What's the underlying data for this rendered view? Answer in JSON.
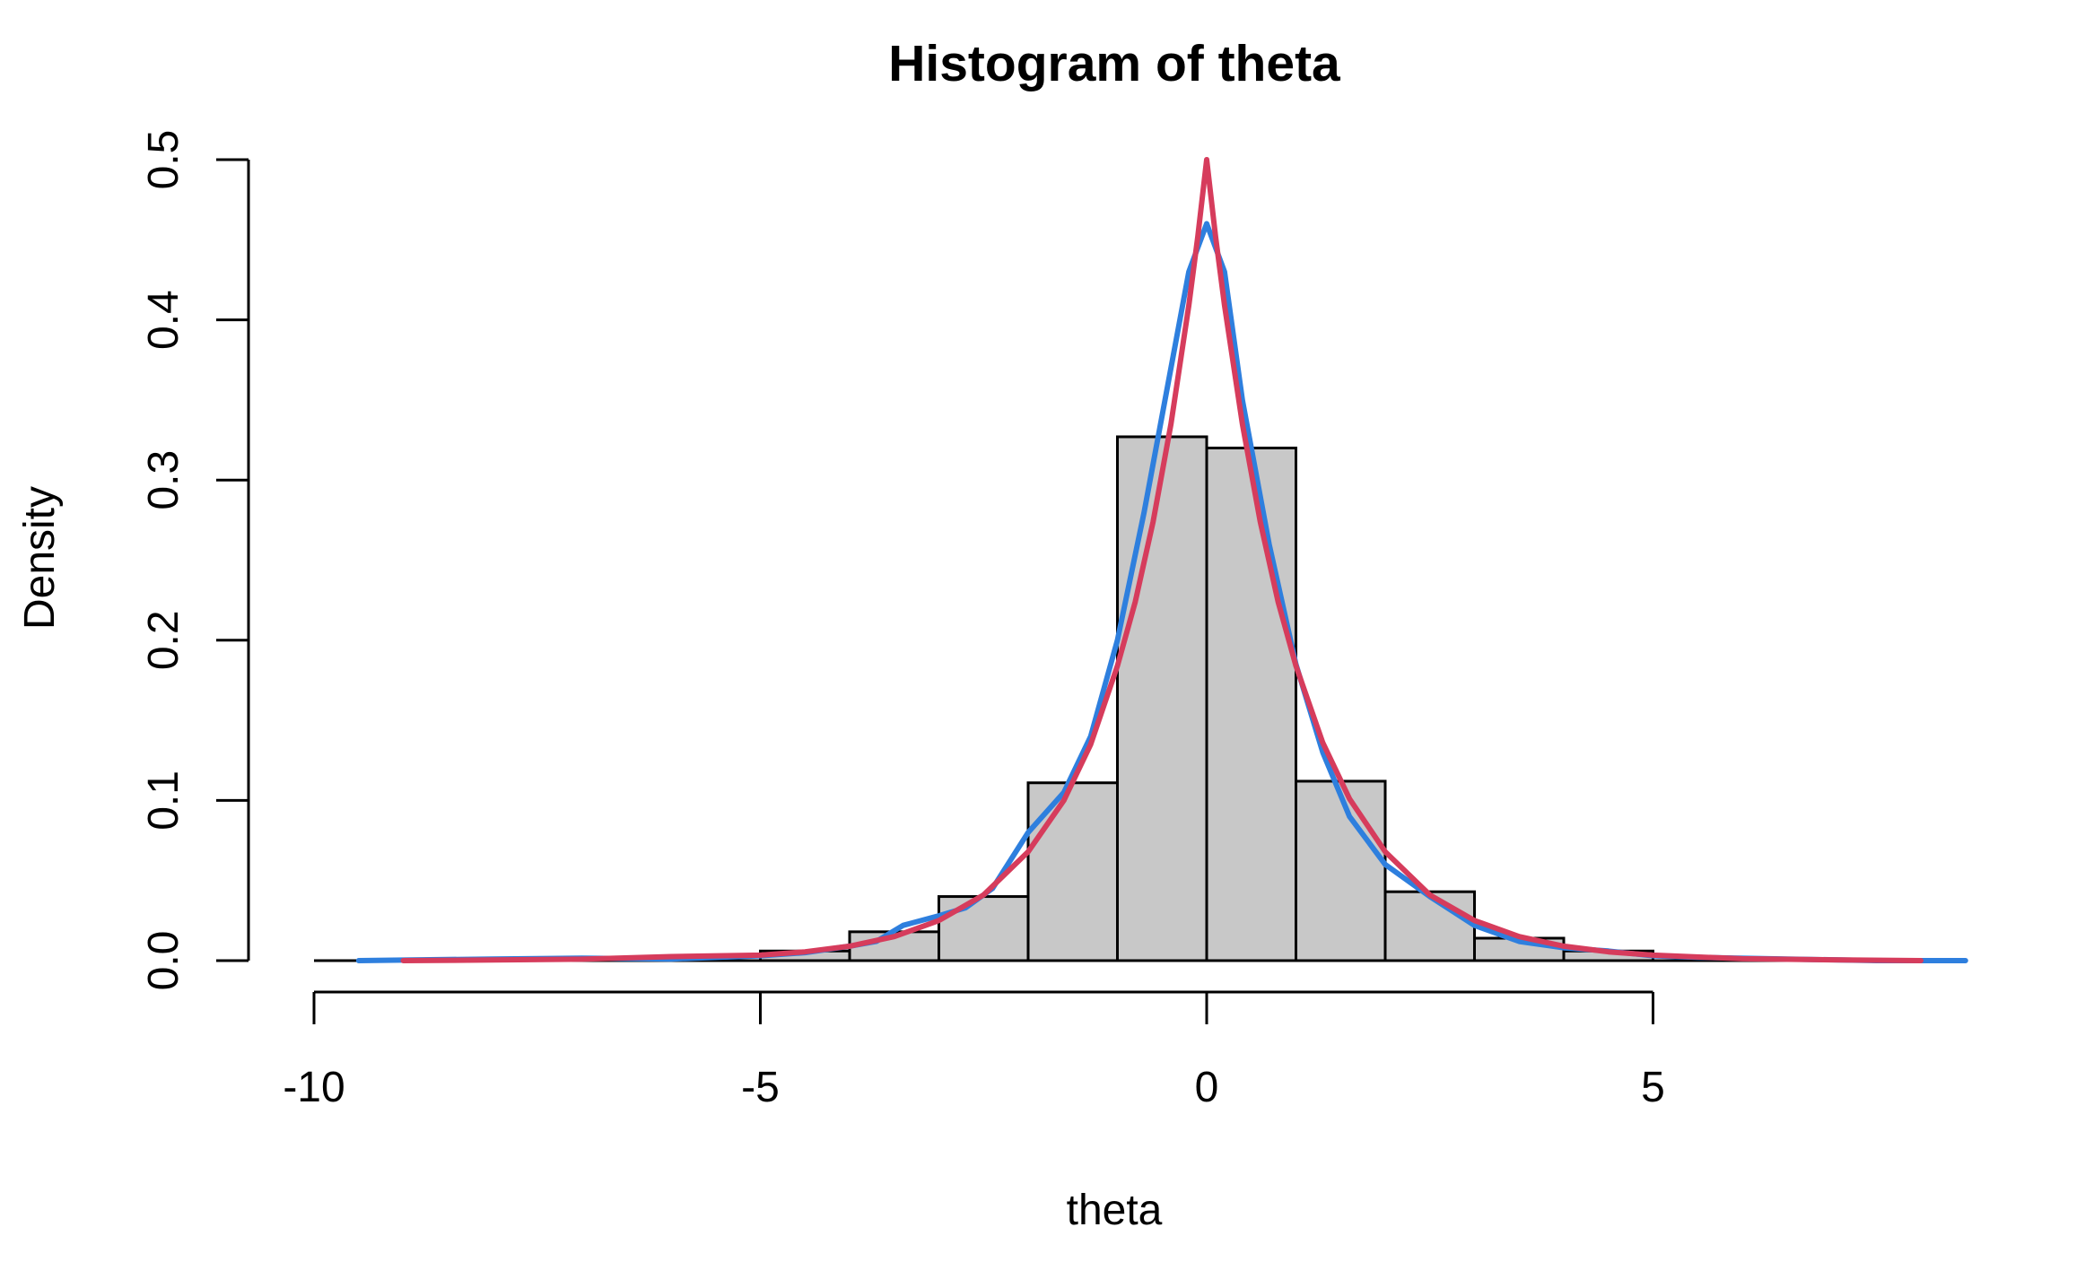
{
  "chart_data": {
    "type": "bar",
    "title": "Histogram of theta",
    "xlabel": "theta",
    "ylabel": "Density",
    "xlim": [
      -10,
      8.5
    ],
    "ylim": [
      0,
      0.5
    ],
    "x_ticks": [
      -10,
      -5,
      0,
      5
    ],
    "y_ticks": [
      0.0,
      0.1,
      0.2,
      0.3,
      0.4,
      0.5
    ],
    "y_tick_labels": [
      "0.0",
      "0.1",
      "0.2",
      "0.3",
      "0.4",
      "0.5"
    ],
    "bins": [
      {
        "from": -10,
        "to": -9,
        "density": 0.0
      },
      {
        "from": -9,
        "to": -8,
        "density": 0.0
      },
      {
        "from": -8,
        "to": -7,
        "density": 0.0
      },
      {
        "from": -7,
        "to": -6,
        "density": 0.0
      },
      {
        "from": -6,
        "to": -5,
        "density": 0.0
      },
      {
        "from": -5,
        "to": -4,
        "density": 0.006
      },
      {
        "from": -4,
        "to": -3,
        "density": 0.018
      },
      {
        "from": -3,
        "to": -2,
        "density": 0.04
      },
      {
        "from": -2,
        "to": -1,
        "density": 0.111
      },
      {
        "from": -1,
        "to": 0,
        "density": 0.327
      },
      {
        "from": 0,
        "to": 1,
        "density": 0.32
      },
      {
        "from": 1,
        "to": 2,
        "density": 0.112
      },
      {
        "from": 2,
        "to": 3,
        "density": 0.043
      },
      {
        "from": 3,
        "to": 4,
        "density": 0.014
      },
      {
        "from": 4,
        "to": 5,
        "density": 0.006
      },
      {
        "from": 5,
        "to": 6,
        "density": 0.0
      },
      {
        "from": 6,
        "to": 7,
        "density": 0.0
      },
      {
        "from": 7,
        "to": 8,
        "density": 0.0
      }
    ],
    "bar_color": "#c8c8c8",
    "series": [
      {
        "color": "#2e7fde",
        "x": [
          -9.5,
          -8,
          -7,
          -6,
          -5,
          -4.5,
          -4,
          -3.7,
          -3.4,
          -3.0,
          -2.7,
          -2.4,
          -2.0,
          -1.6,
          -1.3,
          -1.0,
          -0.7,
          -0.4,
          -0.2,
          0.0,
          0.2,
          0.4,
          0.7,
          1.0,
          1.3,
          1.6,
          2.0,
          2.5,
          3.0,
          3.5,
          4.0,
          4.5,
          5.0,
          5.5,
          6.5,
          7.5,
          8.5
        ],
        "y": [
          0.0,
          0.001,
          0.0015,
          0.001,
          0.003,
          0.005,
          0.009,
          0.012,
          0.022,
          0.028,
          0.033,
          0.045,
          0.08,
          0.105,
          0.14,
          0.2,
          0.28,
          0.37,
          0.43,
          0.46,
          0.43,
          0.35,
          0.26,
          0.185,
          0.13,
          0.09,
          0.06,
          0.04,
          0.022,
          0.012,
          0.008,
          0.006,
          0.003,
          0.002,
          0.001,
          0.0,
          0.0
        ]
      },
      {
        "color": "#d63c5c",
        "x": [
          -9.0,
          -8.0,
          -7.0,
          -6.0,
          -5.0,
          -4.5,
          -4.0,
          -3.5,
          -3.0,
          -2.5,
          -2.0,
          -1.6,
          -1.3,
          -1.0,
          -0.8,
          -0.6,
          -0.4,
          -0.2,
          -0.1,
          0.0,
          0.1,
          0.2,
          0.4,
          0.6,
          0.8,
          1.0,
          1.3,
          1.6,
          2.0,
          2.5,
          3.0,
          3.5,
          4.0,
          4.5,
          5.0,
          6.0,
          7.0,
          8.0
        ],
        "y": [
          0.0,
          0.0004,
          0.0009,
          0.0025,
          0.0034,
          0.0055,
          0.009,
          0.015,
          0.025,
          0.041,
          0.068,
          0.1,
          0.135,
          0.184,
          0.224,
          0.274,
          0.335,
          0.409,
          0.452,
          0.5,
          0.452,
          0.409,
          0.335,
          0.274,
          0.224,
          0.184,
          0.136,
          0.101,
          0.068,
          0.041,
          0.025,
          0.015,
          0.009,
          0.0055,
          0.0034,
          0.0012,
          0.0005,
          0.0
        ]
      }
    ]
  }
}
